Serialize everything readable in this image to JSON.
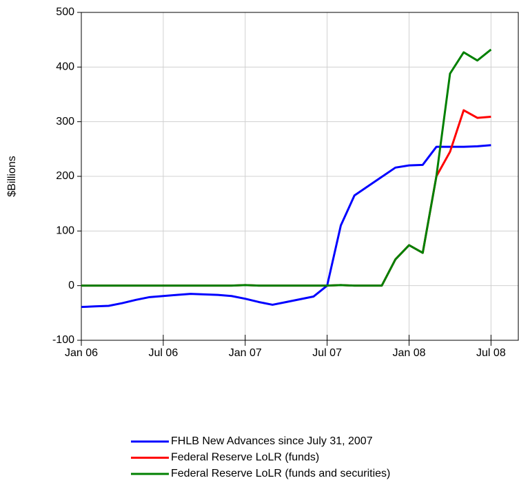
{
  "chart_data": {
    "type": "line",
    "y_label": "$Billions",
    "x": [
      "2006-01",
      "2006-02",
      "2006-03",
      "2006-04",
      "2006-05",
      "2006-06",
      "2006-07",
      "2006-08",
      "2006-09",
      "2006-10",
      "2006-11",
      "2006-12",
      "2007-01",
      "2007-02",
      "2007-03",
      "2007-04",
      "2007-05",
      "2007-06",
      "2007-07",
      "2007-08",
      "2007-09",
      "2007-10",
      "2007-11",
      "2007-12",
      "2008-01",
      "2008-02",
      "2008-03",
      "2008-04",
      "2008-05",
      "2008-06",
      "2008-07"
    ],
    "series": [
      {
        "name": "FHLB New Advances since July 31, 2007",
        "color": "#0000ff",
        "values": [
          -39,
          -38,
          -37,
          -32,
          -26,
          -21,
          -19,
          -17,
          -15,
          -16,
          -17,
          -19,
          -24,
          -30,
          -35,
          -30,
          -25,
          -20,
          0,
          110,
          165,
          182,
          199,
          216,
          220,
          221,
          254,
          254,
          254,
          255,
          257
        ]
      },
      {
        "name": "Federal Reserve LoLR (funds)",
        "color": "#ff0000",
        "values": [
          0,
          0,
          0,
          0,
          0,
          0,
          0,
          0,
          0,
          0,
          0,
          0,
          1,
          0,
          0,
          0,
          0,
          0,
          0,
          1,
          0,
          0,
          0,
          48,
          74,
          60,
          200,
          245,
          321,
          307,
          309
        ]
      },
      {
        "name": "Federal Reserve LoLR (funds and securities)",
        "color": "#008000",
        "values": [
          0,
          0,
          0,
          0,
          0,
          0,
          0,
          0,
          0,
          0,
          0,
          0,
          1,
          0,
          0,
          0,
          0,
          0,
          0,
          1,
          0,
          0,
          0,
          48,
          74,
          60,
          200,
          388,
          427,
          412,
          432
        ]
      }
    ],
    "xlim": [
      "2006-01",
      "2008-09"
    ],
    "xticks": [
      {
        "value": "2006-01",
        "label": "Jan 06"
      },
      {
        "value": "2006-07",
        "label": "Jul 06"
      },
      {
        "value": "2007-01",
        "label": "Jan 07"
      },
      {
        "value": "2007-07",
        "label": "Jul 07"
      },
      {
        "value": "2008-01",
        "label": "Jan 08"
      },
      {
        "value": "2008-07",
        "label": "Jul 08"
      }
    ],
    "ylim": [
      -100,
      500
    ],
    "yticks": [
      -100,
      0,
      100,
      200,
      300,
      400,
      500
    ],
    "grid": true
  }
}
